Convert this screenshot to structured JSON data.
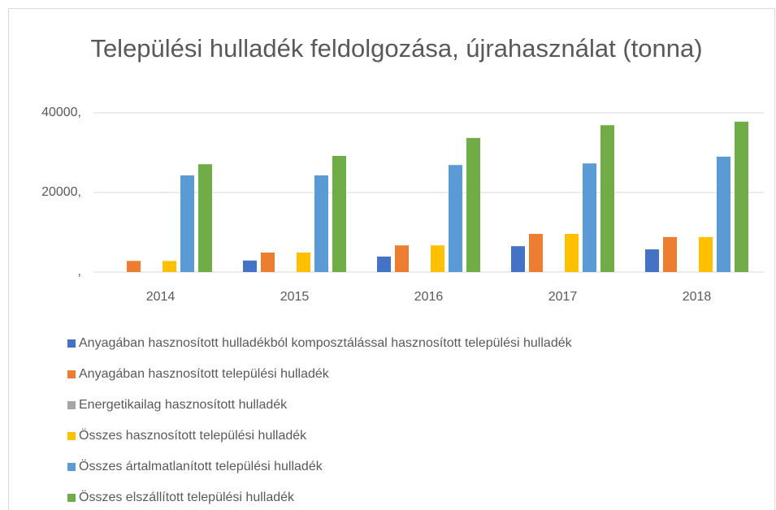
{
  "chart_data": {
    "type": "bar",
    "title": "Települési hulladék feldolgozása, újrahasználat (tonna)",
    "categories": [
      "2014",
      "2015",
      "2016",
      "2017",
      "2018"
    ],
    "series": [
      {
        "name": "Anyagában hasznosított hulladékból komposztálással hasznosított települési hulladék",
        "color": "#4472c4",
        "values": [
          0,
          2900,
          3900,
          6500,
          5700
        ]
      },
      {
        "name": "Anyagában hasznosított települési hulladék",
        "color": "#ed7d31",
        "values": [
          2800,
          4900,
          6700,
          9600,
          8800
        ]
      },
      {
        "name": "Energetikailag hasznosított hulladék",
        "color": "#a5a5a5",
        "values": [
          0,
          0,
          0,
          0,
          0
        ]
      },
      {
        "name": "Összes hasznosított települési hulladék",
        "color": "#ffc000",
        "values": [
          2800,
          4900,
          6700,
          9600,
          8800
        ]
      },
      {
        "name": "Összes ártalmatlanított települési hulladék",
        "color": "#5b9bd5",
        "values": [
          24300,
          24300,
          26900,
          27300,
          29000
        ]
      },
      {
        "name": "Összes elszállított települési hulladék",
        "color": "#70ad47",
        "values": [
          27100,
          29200,
          33700,
          36900,
          37800
        ]
      }
    ],
    "ylim": [
      0,
      40000
    ],
    "yticks": [
      {
        "value": 0,
        "label": ","
      },
      {
        "value": 20000,
        "label": "20000,"
      },
      {
        "value": 40000,
        "label": "40000,"
      }
    ],
    "grid": true,
    "legend": "bottom"
  }
}
